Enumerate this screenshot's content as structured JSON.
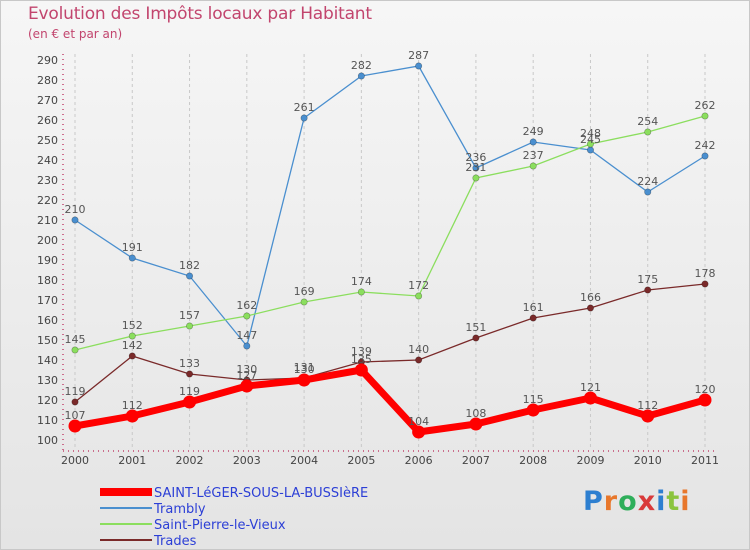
{
  "chart_data": {
    "type": "line",
    "title": "Evolution des Impôts locaux par Habitant",
    "subtitle": "(en € et par an)",
    "xlabel": "",
    "ylabel": "",
    "categories": [
      "2000",
      "2001",
      "2002",
      "2003",
      "2004",
      "2005",
      "2006",
      "2007",
      "2008",
      "2009",
      "2010",
      "2011"
    ],
    "y_ticks": [
      100,
      110,
      120,
      130,
      140,
      150,
      160,
      170,
      180,
      190,
      200,
      210,
      220,
      230,
      240,
      250,
      260,
      270,
      280,
      290
    ],
    "ylim": [
      95,
      293
    ],
    "grid": "vertical dashed",
    "legend_position": "bottom-left",
    "series": [
      {
        "name": "SAINT-LéGER-SOUS-LA-BUSSIèRE",
        "color": "#ff0000",
        "emphasis": true,
        "values": [
          107,
          112,
          119,
          127,
          130,
          135,
          104,
          108,
          115,
          121,
          112,
          120
        ],
        "labels": [
          "107",
          "112",
          "119",
          "127",
          "130",
          "135",
          "104",
          "108",
          "115",
          "121",
          "112",
          "120"
        ]
      },
      {
        "name": "Trambly",
        "color": "#4a8fcf",
        "emphasis": false,
        "values": [
          210,
          191,
          182,
          147,
          261,
          282,
          287,
          236,
          249,
          245,
          224,
          242
        ],
        "labels": [
          "210",
          "191",
          "182",
          "147",
          "261",
          "282",
          "287",
          "236",
          "249",
          "245",
          "224",
          "242"
        ]
      },
      {
        "name": "Saint-Pierre-le-Vieux",
        "color": "#8bde5e",
        "emphasis": false,
        "values": [
          145,
          152,
          157,
          162,
          169,
          174,
          172,
          231,
          237,
          248,
          254,
          262
        ],
        "labels": [
          "145",
          "152",
          "157",
          "162",
          "169",
          "174",
          "172",
          "231",
          "237",
          "248",
          "254",
          "262"
        ]
      },
      {
        "name": "Trades",
        "color": "#7a2a2a",
        "emphasis": false,
        "values": [
          119,
          142,
          133,
          130,
          131,
          139,
          140,
          151,
          161,
          166,
          175,
          178
        ],
        "labels": [
          "119",
          "142",
          "133",
          "130",
          "131",
          "139",
          "140",
          "151",
          "161",
          "166",
          "175",
          "178"
        ]
      }
    ]
  },
  "brand": {
    "text": "Proxiti",
    "letter_colors": [
      "#2d7fd0",
      "#e8772b",
      "#2fae5a",
      "#d93a3a",
      "#2d7fd0",
      "#8bc43d",
      "#e8772b"
    ]
  }
}
